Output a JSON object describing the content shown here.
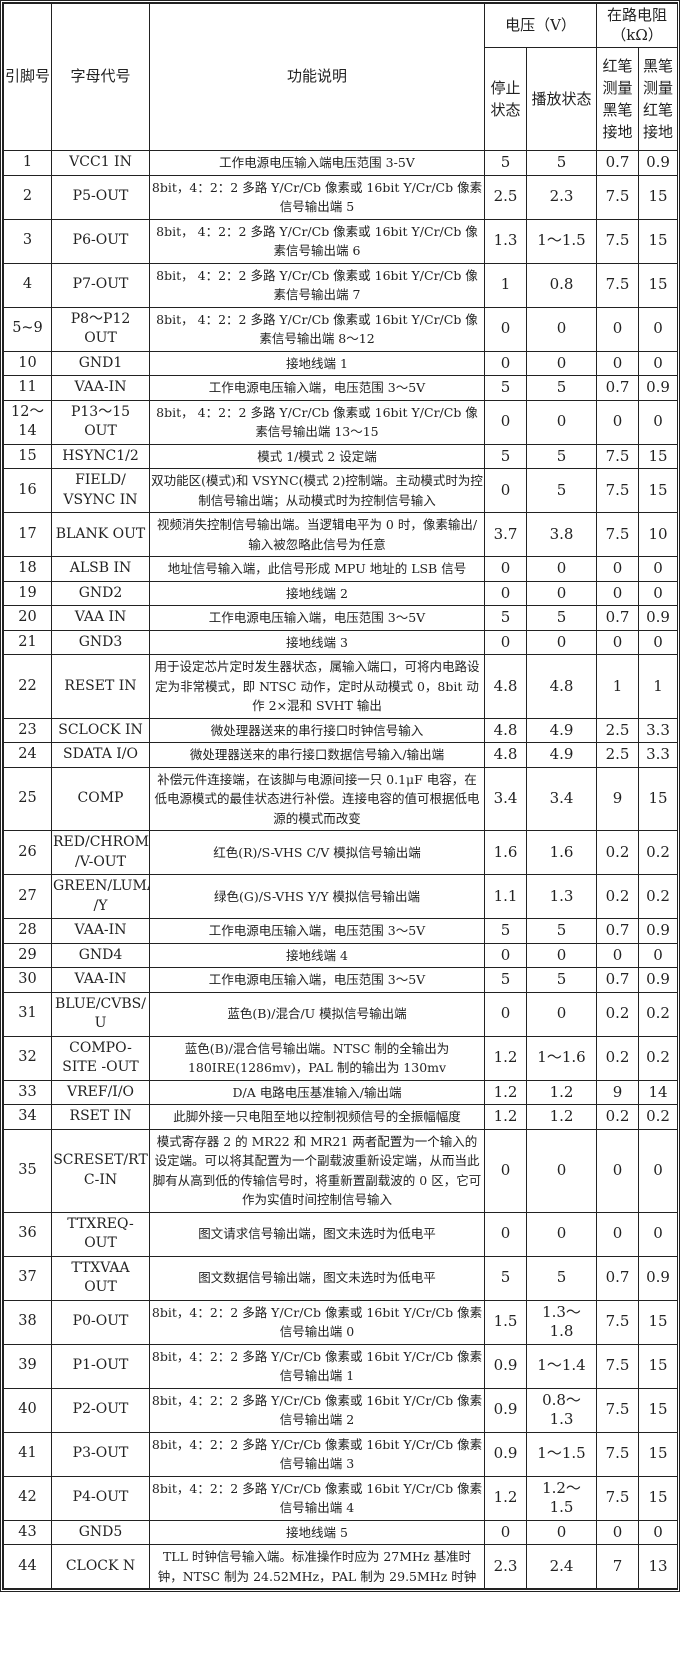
{
  "header": {
    "pin": "引脚号",
    "code": "字母代号",
    "function": "功能说明",
    "voltage": "电压（V）",
    "resistance": "在路电阻（kΩ）",
    "stop": "停止状态",
    "play": "播放状态",
    "red_probe": "红笔测量黑笔接地",
    "black_probe": "黑笔测量红笔接地"
  },
  "rows": [
    {
      "pin": "1",
      "code": "VCC1 IN",
      "fn": "工作电源电压输入端电压范围 3-5V",
      "stop": "5",
      "play": "5",
      "r1": "0.7",
      "r2": "0.9"
    },
    {
      "pin": "2",
      "code": "P5-OUT",
      "fn": "8bit，4：2：2 多路 Y/Cr/Cb 像素或 16bit Y/Cr/Cb 像素信号输出端 5",
      "stop": "2.5",
      "play": "2.3",
      "r1": "7.5",
      "r2": "15"
    },
    {
      "pin": "3",
      "code": "P6-OUT",
      "fn": "8bit， 4：2：2 多路 Y/Cr/Cb 像素或 16bit Y/Cr/Cb 像素信号输出端 6",
      "stop": "1.3",
      "play": "1～1.5",
      "r1": "7.5",
      "r2": "15"
    },
    {
      "pin": "4",
      "code": "P7-OUT",
      "fn": "8bit， 4：2：2 多路 Y/Cr/Cb 像素或 16bit Y/Cr/Cb 像素信号输出端 7",
      "stop": "1",
      "play": "0.8",
      "r1": "7.5",
      "r2": "15"
    },
    {
      "pin": "5~9",
      "code": "P8～P12 OUT",
      "fn": "8bit， 4：2：2 多路 Y/Cr/Cb 像素或 16bit Y/Cr/Cb 像素信号输出端 8～12",
      "stop": "0",
      "play": "0",
      "r1": "0",
      "r2": "0"
    },
    {
      "pin": "10",
      "code": "GND1",
      "fn": "接地线端 1",
      "stop": "0",
      "play": "0",
      "r1": "0",
      "r2": "0"
    },
    {
      "pin": "11",
      "code": "VAA-IN",
      "fn": "工作电源电压输入端，电压范围 3～5V",
      "stop": "5",
      "play": "5",
      "r1": "0.7",
      "r2": "0.9"
    },
    {
      "pin": "12～14",
      "code": "P13～15 OUT",
      "fn": "8bit， 4：2：2 多路 Y/Cr/Cb 像素或 16bit Y/Cr/Cb 像素信号输出端 13～15",
      "stop": "0",
      "play": "0",
      "r1": "0",
      "r2": "0"
    },
    {
      "pin": "15",
      "code": "HSYNC1/2",
      "fn": "模式 1/模式 2 设定端",
      "stop": "5",
      "play": "5",
      "r1": "7.5",
      "r2": "15"
    },
    {
      "pin": "16",
      "code": "FIELD/ VSYNC IN",
      "fn": "双功能区(模式)和 VSYNC(模式 2)控制端。主动模式时为控制信号输出端；从动模式时为控制信号输入",
      "stop": "0",
      "play": "5",
      "r1": "7.5",
      "r2": "15"
    },
    {
      "pin": "17",
      "code": "BLANK OUT",
      "fn": "视频消失控制信号输出端。当逻辑电平为 0 时，像素输出/输入被忽略此信号为任意",
      "stop": "3.7",
      "play": "3.8",
      "r1": "7.5",
      "r2": "10"
    },
    {
      "pin": "18",
      "code": "ALSB IN",
      "fn": "地址信号输入端，此信号形成 MPU 地址的 LSB 信号",
      "stop": "0",
      "play": "0",
      "r1": "0",
      "r2": "0"
    },
    {
      "pin": "19",
      "code": "GND2",
      "fn": "接地线端 2",
      "stop": "0",
      "play": "0",
      "r1": "0",
      "r2": "0"
    },
    {
      "pin": "20",
      "code": "VAA IN",
      "fn": "工作电源电压输入端，电压范围 3～5V",
      "stop": "5",
      "play": "5",
      "r1": "0.7",
      "r2": "0.9"
    },
    {
      "pin": "21",
      "code": "GND3",
      "fn": "接地线端 3",
      "stop": "0",
      "play": "0",
      "r1": "0",
      "r2": "0"
    },
    {
      "pin": "22",
      "code": "RESET IN",
      "fn": "用于设定芯片定时发生器状态，属输入端口，可将内电路设定为非常模式，即 NTSC 动作，定时从动模式 0，8bit 动作 2×混和 SVHT 输出",
      "stop": "4.8",
      "play": "4.8",
      "r1": "1",
      "r2": "1"
    },
    {
      "pin": "23",
      "code": "SCLOCK IN",
      "fn": "微处理器送来的串行接口时钟信号输入",
      "stop": "4.8",
      "play": "4.9",
      "r1": "2.5",
      "r2": "3.3"
    },
    {
      "pin": "24",
      "code": "SDATA I/O",
      "fn": "微处理器送来的串行接口数据信号输入/输出端",
      "stop": "4.8",
      "play": "4.9",
      "r1": "2.5",
      "r2": "3.3"
    },
    {
      "pin": "25",
      "code": "COMP",
      "fn": "补偿元件连接端，在该脚与电源间接一只 0.1μF 电容，在低电源模式的最佳状态进行补偿。连接电容的值可根据低电源的模式而改变",
      "stop": "3.4",
      "play": "3.4",
      "r1": "9",
      "r2": "15"
    },
    {
      "pin": "26",
      "code": "RED/CHROMA /V-OUT",
      "fn": "红色(R)/S-VHS C/V 模拟信号输出端",
      "stop": "1.6",
      "play": "1.6",
      "r1": "0.2",
      "r2": "0.2"
    },
    {
      "pin": "27",
      "code": "GREEN/LUMA /Y",
      "fn": "绿色(G)/S-VHS Y/Y 模拟信号输出端",
      "stop": "1.1",
      "play": "1.3",
      "r1": "0.2",
      "r2": "0.2"
    },
    {
      "pin": "28",
      "code": "VAA-IN",
      "fn": "工作电源电压输入端，电压范围 3～5V",
      "stop": "5",
      "play": "5",
      "r1": "0.7",
      "r2": "0.9"
    },
    {
      "pin": "29",
      "code": "GND4",
      "fn": "接地线端 4",
      "stop": "0",
      "play": "0",
      "r1": "0",
      "r2": "0"
    },
    {
      "pin": "30",
      "code": "VAA-IN",
      "fn": "工作电源电压输入端，电压范围 3～5V",
      "stop": "5",
      "play": "5",
      "r1": "0.7",
      "r2": "0.9"
    },
    {
      "pin": "31",
      "code": "BLUE/CVBS/ U",
      "fn": "蓝色(B)/混合/U 模拟信号输出端",
      "stop": "0",
      "play": "0",
      "r1": "0.2",
      "r2": "0.2"
    },
    {
      "pin": "32",
      "code": "COMPO-SITE -OUT",
      "fn": "蓝色(B)/混合信号输出端。NTSC 制的全输出为 180IRE(1286mv)，PAL 制的输出为 130mv",
      "stop": "1.2",
      "play": "1～1.6",
      "r1": "0.2",
      "r2": "0.2"
    },
    {
      "pin": "33",
      "code": "VREF/I/O",
      "fn": "D/A 电路电压基准输入/输出端",
      "stop": "1.2",
      "play": "1.2",
      "r1": "9",
      "r2": "14"
    },
    {
      "pin": "34",
      "code": "RSET IN",
      "fn": "此脚外接一只电阻至地以控制视频信号的全振幅幅度",
      "stop": "1.2",
      "play": "1.2",
      "r1": "0.2",
      "r2": "0.2"
    },
    {
      "pin": "35",
      "code": "SCRESET/RT C-IN",
      "fn": "模式寄存器 2 的 MR22 和 MR21 两者配置为一个输入的设定端。可以将其配置为一个副载波重新设定端，从而当此脚有从高到低的传输信号时，将重新置副载波的 0 区，它可作为实值时间控制信号输入",
      "stop": "0",
      "play": "0",
      "r1": "0",
      "r2": "0"
    },
    {
      "pin": "36",
      "code": "TTXREQ-OUT",
      "fn": "图文请求信号输出端，图文未选时为低电平",
      "stop": "0",
      "play": "0",
      "r1": "0",
      "r2": "0"
    },
    {
      "pin": "37",
      "code": "TTXVAA OUT",
      "fn": "图文数据信号输出端，图文未选时为低电平",
      "stop": "5",
      "play": "5",
      "r1": "0.7",
      "r2": "0.9"
    },
    {
      "pin": "38",
      "code": "P0-OUT",
      "fn": "8bit，4：2：2 多路 Y/Cr/Cb 像素或 16bit Y/Cr/Cb 像素信号输出端 0",
      "stop": "1.5",
      "play": "1.3～ 1.8",
      "r1": "7.5",
      "r2": "15"
    },
    {
      "pin": "39",
      "code": "P1-OUT",
      "fn": "8bit，4：2：2 多路 Y/Cr/Cb 像素或 16bit Y/Cr/Cb 像素信号输出端 1",
      "stop": "0.9",
      "play": "1～1.4",
      "r1": "7.5",
      "r2": "15"
    },
    {
      "pin": "40",
      "code": "P2-OUT",
      "fn": "8bit，4：2：2 多路 Y/Cr/Cb 像素或 16bit Y/Cr/Cb 像素信号输出端 2",
      "stop": "0.9",
      "play": "0.8～ 1.3",
      "r1": "7.5",
      "r2": "15"
    },
    {
      "pin": "41",
      "code": "P3-OUT",
      "fn": "8bit，4：2：2 多路 Y/Cr/Cb 像素或 16bit Y/Cr/Cb 像素信号输出端 3",
      "stop": "0.9",
      "play": "1～1.5",
      "r1": "7.5",
      "r2": "15"
    },
    {
      "pin": "42",
      "code": "P4-OUT",
      "fn": "8bit，4：2：2 多路 Y/Cr/Cb 像素或 16bit Y/Cr/Cb 像素信号输出端 4",
      "stop": "1.2",
      "play": "1.2～ 1.5",
      "r1": "7.5",
      "r2": "15"
    },
    {
      "pin": "43",
      "code": "GND5",
      "fn": "接地线端 5",
      "stop": "0",
      "play": "0",
      "r1": "0",
      "r2": "0"
    },
    {
      "pin": "44",
      "code": "CLOCK N",
      "fn": "TLL 时钟信号输入端。标准操作时应为 27MHz 基准时钟，NTSC 制为 24.52MHz，PAL 制为 29.5MHz 时钟",
      "stop": "2.3",
      "play": "2.4",
      "r1": "7",
      "r2": "13"
    }
  ]
}
